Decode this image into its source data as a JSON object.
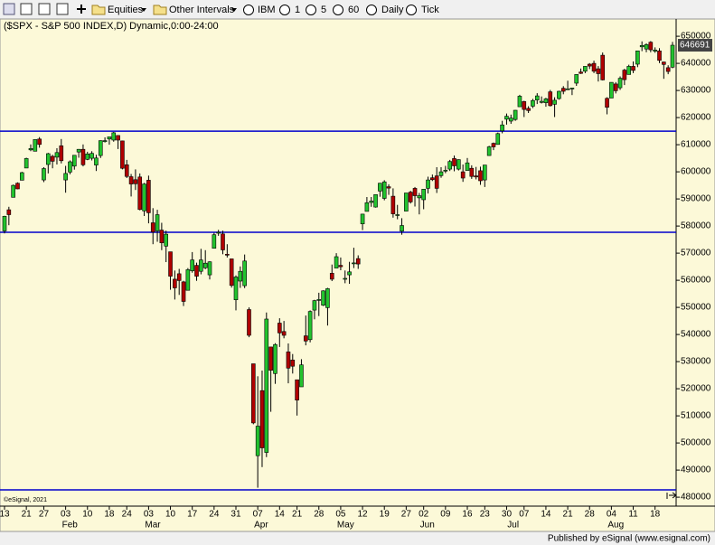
{
  "toolbar": {
    "items": [
      "Equities",
      "Other Intervals",
      "IBM",
      "1",
      "5",
      "60",
      "Daily",
      "Tick"
    ]
  },
  "footer": "Published by eSignal (www.esignal.com)",
  "chart_data": {
    "type": "candlestick",
    "title": "($SPX - S&P 500 INDEX,D) Dynamic,0:00-24:00",
    "watermark": "©eSignal, 2021",
    "up_color": "#22c32e",
    "down_color": "#b00000",
    "line_color": "#0000cc",
    "background": "#fcf9d8",
    "ylim": [
      4767,
      6567
    ],
    "yticks": [
      {
        "value": 4800,
        "label": "480000"
      },
      {
        "value": 4900,
        "label": "490000"
      },
      {
        "value": 5000,
        "label": "500000"
      },
      {
        "value": 5100,
        "label": "510000"
      },
      {
        "value": 5200,
        "label": "520000"
      },
      {
        "value": 5300,
        "label": "530000"
      },
      {
        "value": 5400,
        "label": "540000"
      },
      {
        "value": 5500,
        "label": "550000"
      },
      {
        "value": 5600,
        "label": "560000"
      },
      {
        "value": 5700,
        "label": "570000"
      },
      {
        "value": 5800,
        "label": "580000"
      },
      {
        "value": 5900,
        "label": "590000"
      },
      {
        "value": 6000,
        "label": "600000"
      },
      {
        "value": 6100,
        "label": "610000"
      },
      {
        "value": 6200,
        "label": "620000"
      },
      {
        "value": 6300,
        "label": "630000"
      },
      {
        "value": 6400,
        "label": "640000"
      },
      {
        "value": 6500,
        "label": "650000"
      }
    ],
    "last_price": {
      "value": 6466.91,
      "label": "646691"
    },
    "hlines": [
      6150,
      5777,
      4827
    ],
    "categories": [
      "13",
      null,
      null,
      null,
      null,
      "21",
      null,
      null,
      null,
      "27",
      null,
      null,
      null,
      null,
      "03",
      null,
      null,
      null,
      null,
      "10",
      null,
      null,
      null,
      null,
      "18",
      null,
      null,
      null,
      "24",
      null,
      null,
      null,
      null,
      "03",
      null,
      null,
      null,
      null,
      "10",
      null,
      null,
      null,
      null,
      "17",
      null,
      null,
      null,
      null,
      "24",
      null,
      null,
      null,
      null,
      "31",
      null,
      null,
      null,
      null,
      "07",
      null,
      null,
      null,
      null,
      "14",
      null,
      null,
      null,
      "21",
      null,
      null,
      null,
      null,
      "28",
      null,
      null,
      null,
      null,
      "05",
      null,
      null,
      null,
      null,
      "12",
      null,
      null,
      null,
      null,
      "19",
      null,
      null,
      null,
      null,
      "27",
      null,
      null,
      null,
      "02",
      null,
      null,
      null,
      null,
      "09",
      null,
      null,
      null,
      null,
      "16",
      null,
      null,
      null,
      "23",
      null,
      null,
      null,
      null,
      "30",
      null,
      null,
      null,
      "07",
      null,
      null,
      null,
      null,
      "14",
      null,
      null,
      null,
      null,
      "21",
      null,
      null,
      null,
      null,
      "28",
      null,
      null,
      null,
      null,
      "04",
      null,
      null,
      null,
      null,
      "11",
      null,
      null,
      null,
      null,
      "18",
      null,
      null,
      null,
      null
    ],
    "months": [
      null,
      null,
      null,
      null,
      null,
      null,
      null,
      null,
      null,
      null,
      null,
      null,
      null,
      null,
      "Feb",
      null,
      null,
      null,
      null,
      null,
      null,
      null,
      null,
      null,
      null,
      null,
      null,
      null,
      null,
      null,
      null,
      null,
      null,
      "Mar",
      null,
      null,
      null,
      null,
      null,
      null,
      null,
      null,
      null,
      null,
      null,
      null,
      null,
      null,
      null,
      null,
      null,
      null,
      null,
      null,
      null,
      null,
      null,
      null,
      "Apr",
      null,
      null,
      null,
      null,
      null,
      null,
      null,
      null,
      null,
      null,
      null,
      null,
      null,
      null,
      null,
      null,
      null,
      null,
      "May",
      null,
      null,
      null,
      null,
      null,
      null,
      null,
      null,
      null,
      null,
      null,
      null,
      null,
      null,
      null,
      null,
      null,
      null,
      "Jun",
      null,
      null,
      null,
      null,
      null,
      null,
      null,
      null,
      null,
      null,
      null,
      null,
      null,
      null,
      null,
      null,
      null,
      null,
      null,
      "Jul",
      null,
      null,
      null,
      null,
      null,
      null,
      null,
      null,
      null,
      null,
      null,
      null,
      null,
      null,
      null,
      null,
      null,
      null,
      null,
      null,
      null,
      null,
      "Aug",
      null,
      null,
      null,
      null,
      null,
      null,
      null,
      null,
      null,
      null,
      null,
      null,
      null,
      null
    ],
    "ohlc": [
      [
        5782,
        5838,
        5773,
        5836
      ],
      [
        5860,
        5871,
        5803,
        5842
      ],
      [
        5906,
        5953,
        5906,
        5950
      ],
      [
        5958,
        5961,
        5936,
        5937
      ],
      [
        5969,
        6000,
        5969,
        5997
      ],
      [
        6014,
        6052,
        6014,
        6049
      ],
      [
        6081,
        6101,
        6076,
        6086
      ],
      [
        6076,
        6119,
        6076,
        6119
      ],
      [
        6121,
        6128,
        6089,
        6101
      ],
      [
        5970,
        6017,
        5962,
        6012
      ],
      [
        6027,
        6070,
        5994,
        6067
      ],
      [
        6057,
        6063,
        6013,
        6039
      ],
      [
        6054,
        6087,
        6027,
        6071
      ],
      [
        6096,
        6121,
        6031,
        6041
      ],
      [
        5970,
        6022,
        5923,
        5994
      ],
      [
        5999,
        6042,
        5991,
        6037
      ],
      [
        6021,
        6062,
        6008,
        6061
      ],
      [
        6073,
        6084,
        6052,
        6083
      ],
      [
        6083,
        6101,
        6020,
        6026
      ],
      [
        6046,
        6074,
        6043,
        6066
      ],
      [
        6050,
        6076,
        6042,
        6068
      ],
      [
        6025,
        6063,
        6003,
        6051
      ],
      [
        6060,
        6116,
        6051,
        6115
      ],
      [
        6115,
        6127,
        6108,
        6115
      ],
      [
        6121,
        6129,
        6100,
        6129
      ],
      [
        6117,
        6147,
        6111,
        6144
      ],
      [
        6134,
        6134,
        6084,
        6117
      ],
      [
        6114,
        6115,
        6009,
        6013
      ],
      [
        6026,
        6044,
        5977,
        5983
      ],
      [
        5982,
        5992,
        5909,
        5955
      ],
      [
        5971,
        6009,
        5933,
        5956
      ],
      [
        5981,
        5994,
        5858,
        5861
      ],
      [
        5856,
        5959,
        5837,
        5955
      ],
      [
        5969,
        5986,
        5810,
        5849
      ],
      [
        5812,
        5866,
        5733,
        5778
      ],
      [
        5782,
        5860,
        5742,
        5842
      ],
      [
        5785,
        5812,
        5711,
        5738
      ],
      [
        5726,
        5783,
        5667,
        5770
      ],
      [
        5705,
        5705,
        5565,
        5615
      ],
      [
        5604,
        5636,
        5529,
        5572
      ],
      [
        5624,
        5642,
        5546,
        5599
      ],
      [
        5594,
        5598,
        5505,
        5522
      ],
      [
        5563,
        5645,
        5563,
        5639
      ],
      [
        5635,
        5704,
        5628,
        5675
      ],
      [
        5655,
        5665,
        5598,
        5615
      ],
      [
        5633,
        5716,
        5622,
        5675
      ],
      [
        5646,
        5711,
        5641,
        5663
      ],
      [
        5620,
        5670,
        5603,
        5668
      ],
      [
        5718,
        5775,
        5718,
        5768
      ],
      [
        5776,
        5786,
        5764,
        5777
      ],
      [
        5771,
        5783,
        5696,
        5712
      ],
      [
        5696,
        5733,
        5684,
        5693
      ],
      [
        5679,
        5679,
        5573,
        5581
      ],
      [
        5528,
        5618,
        5489,
        5612
      ],
      [
        5597,
        5651,
        5572,
        5633
      ],
      [
        5580,
        5695,
        5571,
        5671
      ],
      [
        5492,
        5500,
        5390,
        5397
      ],
      [
        5292,
        5292,
        5069,
        5074
      ],
      [
        4953,
        5246,
        4835,
        5062
      ],
      [
        5193,
        5267,
        4911,
        4982
      ],
      [
        4965,
        5481,
        4948,
        5457
      ],
      [
        5354,
        5354,
        5115,
        5268
      ],
      [
        5256,
        5368,
        5218,
        5363
      ],
      [
        5442,
        5460,
        5354,
        5406
      ],
      [
        5411,
        5450,
        5386,
        5397
      ],
      [
        5336,
        5367,
        5220,
        5276
      ],
      [
        5306,
        5328,
        5256,
        5283
      ],
      [
        5233,
        5233,
        5101,
        5158
      ],
      [
        5207,
        5309,
        5207,
        5288
      ],
      [
        5395,
        5470,
        5360,
        5376
      ],
      [
        5381,
        5489,
        5371,
        5485
      ],
      [
        5490,
        5528,
        5456,
        5525
      ],
      [
        5529,
        5554,
        5468,
        5529
      ],
      [
        5508,
        5563,
        5505,
        5561
      ],
      [
        5499,
        5572,
        5433,
        5569
      ],
      [
        5626,
        5658,
        5597,
        5604
      ],
      [
        5645,
        5700,
        5645,
        5687
      ],
      [
        5655,
        5684,
        5637,
        5650
      ],
      [
        5606,
        5636,
        5589,
        5607
      ],
      [
        5620,
        5668,
        5587,
        5631
      ],
      [
        5663,
        5720,
        5645,
        5664
      ],
      [
        5680,
        5692,
        5642,
        5660
      ],
      [
        5808,
        5845,
        5785,
        5844
      ],
      [
        5854,
        5907,
        5854,
        5886
      ],
      [
        5887,
        5907,
        5871,
        5892
      ],
      [
        5870,
        5917,
        5868,
        5916
      ],
      [
        5929,
        5959,
        5908,
        5958
      ],
      [
        5902,
        5969,
        5895,
        5963
      ],
      [
        5945,
        5954,
        5915,
        5940
      ],
      [
        5910,
        5939,
        5831,
        5845
      ],
      [
        5841,
        5878,
        5825,
        5842
      ],
      [
        5781,
        5829,
        5768,
        5802
      ],
      [
        5855,
        5922,
        5855,
        5922
      ],
      [
        5925,
        5930,
        5883,
        5889
      ],
      [
        5939,
        5944,
        5872,
        5912
      ],
      [
        5904,
        5922,
        5843,
        5912
      ],
      [
        5897,
        5937,
        5862,
        5936
      ],
      [
        5939,
        5982,
        5920,
        5970
      ],
      [
        5978,
        5990,
        5966,
        5971
      ],
      [
        5985,
        6017,
        5922,
        5939
      ],
      [
        5986,
        6017,
        5978,
        6000
      ],
      [
        6005,
        6022,
        5995,
        6006
      ],
      [
        6010,
        6044,
        6003,
        6038
      ],
      [
        6049,
        6060,
        6002,
        6022
      ],
      [
        6010,
        6046,
        6005,
        6045
      ],
      [
        6000,
        6027,
        5963,
        5977
      ],
      [
        6005,
        6051,
        6005,
        6033
      ],
      [
        6013,
        6024,
        5974,
        5983
      ],
      [
        5985,
        6018,
        5972,
        5981
      ],
      [
        6004,
        6019,
        5952,
        5967
      ],
      [
        5970,
        6025,
        5944,
        6025
      ],
      [
        6060,
        6096,
        6059,
        6092
      ],
      [
        6105,
        6108,
        6080,
        6092
      ],
      [
        6101,
        6145,
        6100,
        6141
      ],
      [
        6151,
        6188,
        6142,
        6173
      ],
      [
        6194,
        6215,
        6174,
        6205
      ],
      [
        6187,
        6211,
        6177,
        6198
      ],
      [
        6193,
        6228,
        6188,
        6227
      ],
      [
        6240,
        6284,
        6240,
        6279
      ],
      [
        6259,
        6262,
        6202,
        6230
      ],
      [
        6234,
        6242,
        6217,
        6226
      ],
      [
        6242,
        6269,
        6235,
        6263
      ],
      [
        6265,
        6290,
        6250,
        6280
      ],
      [
        6256,
        6278,
        6252,
        6260
      ],
      [
        6255,
        6273,
        6240,
        6269
      ],
      [
        6295,
        6302,
        6241,
        6244
      ],
      [
        6249,
        6275,
        6202,
        6264
      ],
      [
        6270,
        6299,
        6266,
        6297
      ],
      [
        6308,
        6316,
        6286,
        6297
      ],
      [
        6305,
        6336,
        6303,
        6306
      ],
      [
        6307,
        6310,
        6283,
        6309
      ],
      [
        6327,
        6360,
        6317,
        6359
      ],
      [
        6368,
        6381,
        6361,
        6363
      ],
      [
        6371,
        6390,
        6364,
        6389
      ],
      [
        6397,
        6401,
        6379,
        6390
      ],
      [
        6400,
        6410,
        6364,
        6371
      ],
      [
        6380,
        6390,
        6333,
        6362
      ],
      [
        6430,
        6440,
        6337,
        6339
      ],
      [
        6271,
        6275,
        6212,
        6238
      ],
      [
        6272,
        6330,
        6272,
        6330
      ],
      [
        6324,
        6331,
        6289,
        6299
      ],
      [
        6310,
        6352,
        6302,
        6345
      ],
      [
        6375,
        6380,
        6320,
        6340
      ],
      [
        6359,
        6395,
        6359,
        6389
      ],
      [
        6389,
        6407,
        6364,
        6374
      ],
      [
        6397,
        6447,
        6386,
        6446
      ],
      [
        6461,
        6481,
        6445,
        6466
      ],
      [
        6453,
        6474,
        6441,
        6469
      ],
      [
        6478,
        6482,
        6441,
        6450
      ],
      [
        6445,
        6459,
        6439,
        6449
      ],
      [
        6446,
        6456,
        6401,
        6411
      ],
      [
        6405,
        6406,
        6343,
        6396
      ],
      [
        6384,
        6393,
        6360,
        6370
      ],
      [
        6386,
        6479,
        6382,
        6466.91
      ]
    ]
  }
}
